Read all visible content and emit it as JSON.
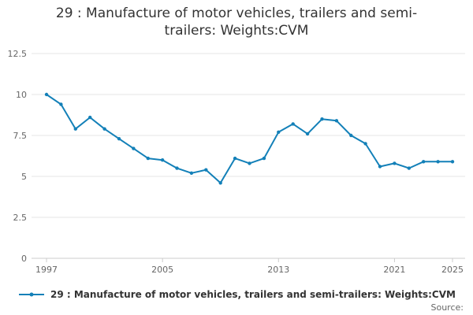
{
  "chart_data": {
    "type": "line",
    "title": "29 : Manufacture of motor vehicles, trailers and semi-trailers: Weights:CVM",
    "xlabel": "",
    "ylabel": "",
    "ylim": [
      0,
      12.5
    ],
    "yticks": [
      "0",
      "2.5",
      "5",
      "7.5",
      "10",
      "12.5"
    ],
    "ytick_values": [
      0,
      2.5,
      5,
      7.5,
      10,
      12.5
    ],
    "xlim": [
      1997,
      2025
    ],
    "xticks": [
      "1997",
      "2005",
      "2013",
      "2021",
      "2025"
    ],
    "xtick_values": [
      1997,
      2005,
      2013,
      2021,
      2025
    ],
    "grid": true,
    "legend_position": "bottom-left",
    "series": [
      {
        "name": "29 : Manufacture of motor vehicles, trailers and semi-trailers: Weights:CVM",
        "color": "#1380b8",
        "x": [
          1997,
          1998,
          1999,
          2000,
          2001,
          2002,
          2003,
          2004,
          2005,
          2006,
          2007,
          2008,
          2009,
          2010,
          2011,
          2012,
          2013,
          2014,
          2015,
          2016,
          2017,
          2018,
          2019,
          2020,
          2021,
          2022,
          2023,
          2024,
          2025
        ],
        "values": [
          10.0,
          9.4,
          7.9,
          8.6,
          7.9,
          7.3,
          6.7,
          6.1,
          6.0,
          5.5,
          5.2,
          5.4,
          4.6,
          6.1,
          5.8,
          6.1,
          7.7,
          8.2,
          7.6,
          8.5,
          8.4,
          7.5,
          7.0,
          5.6,
          5.8,
          5.5,
          5.9,
          5.9,
          5.9
        ]
      }
    ]
  },
  "source_label": "Source:"
}
